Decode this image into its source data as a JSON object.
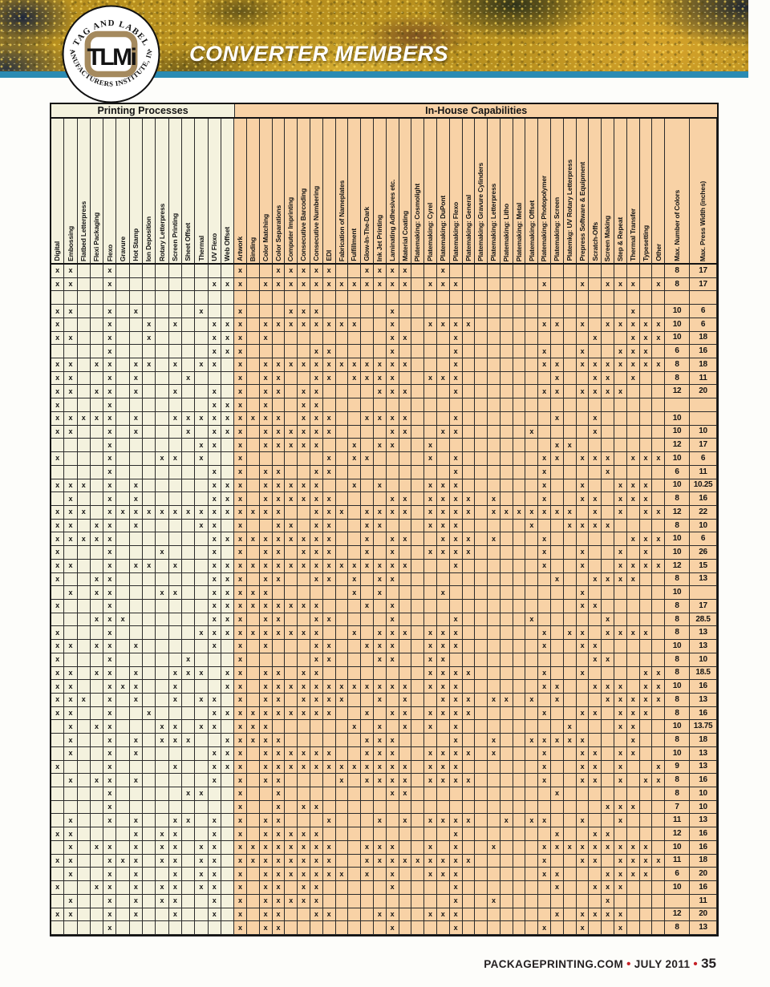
{
  "header": {
    "logo": {
      "top_text": "· TAG AND LABEL ·",
      "bottom_text": "MANUFACTURERS INSTITUTE, INC.",
      "monogram": "TLMi"
    },
    "title": "CONVERTER MEMBERS"
  },
  "table": {
    "section_printing": "Printing Processes",
    "section_capabilities": "In-House Capabilities",
    "printing_columns": [
      "Digital",
      "Embossing",
      "Flatbed Letterpress",
      "Flexi Packaging",
      "Flexo",
      "Gravure",
      "Hot Stamp",
      "Ion Deposition",
      "Rotary Letterpress",
      "Screen Printing",
      "Sheet Offset",
      "Thermal",
      "UV Flexo",
      "Web Offset"
    ],
    "capability_columns": [
      "Artwork",
      "Binding",
      "Color Matching",
      "Color Separations",
      "Computer Imprinting",
      "Consecutive Barcoding",
      "Consecutive Numbering",
      "EDI",
      "Fabrication of Nameplates",
      "Fulfillment",
      "Glow-In-The-Dark",
      "Ink Jet Printing",
      "Laminating Adhesives  etc.",
      "Material Coating",
      "Platemaking: Cosmolight",
      "Platemaking: Cyrel",
      "Platemaking: DuPont",
      "Platemaking: Flexo",
      "Platemaking: General",
      "Platemaking: Gravure Cylinders",
      "Platemaking: Letterpress",
      "Platemaking: Litho",
      "Platemaking: Metal",
      "Platemaking: Offset",
      "Platemaking: Photopolymer",
      "Platemaking: Screen",
      "Platemkg: UV Rotary Letterpress",
      "Prepress Software & Equipment",
      "Scratch-Offs",
      "Screen Making",
      "Step & Repeat",
      "Thermal Transfer",
      "Typesetting",
      "Other"
    ],
    "max_columns": [
      "Max. Number of Colors",
      "Max. Press Width (inches)"
    ],
    "mark": "x",
    "rows": [
      {
        "p": "xx..x.........",
        "c": "x..xxxxx..xxxx..x.................",
        "colors": "8",
        "width": "17"
      },
      {
        "p": "xx..x.......xx",
        "c": "x.xxxxxxxxxxxx.xxx......x..x.xxx.x",
        "colors": "8",
        "width": "17"
      },
      {
        "p": "..............",
        "c": "..................................",
        "colors": "",
        "width": ""
      },
      {
        "p": "xx..x.x....x..",
        "c": "x...xxx.....x..................x..",
        "colors": "10",
        "width": "6"
      },
      {
        "p": "x...x..x.x..xx",
        "c": "x.xxxxxxxx..x..xxxx.....xx.x.xxxxx",
        "colors": "10",
        "width": "6"
      },
      {
        "p": "xx..x..x....xx",
        "c": "x.x.........xx...x..........x..xxx",
        "colors": "10",
        "width": "18"
      },
      {
        "p": "....x.......xx",
        "c": "x.....xx....x....x......x..x..xxx.",
        "colors": "6",
        "width": "16"
      },
      {
        "p": "xx.xx.xx.x.xx.",
        "c": "x.xxxxxxxxxxxx...x......xx.xxxxxxx",
        "colors": "8",
        "width": "18"
      },
      {
        "p": "xx..x.x...x...",
        "c": "x.xx..xx.xxxx..xxx.......x..xx.x..",
        "colors": "8",
        "width": "11"
      },
      {
        "p": "xx.xx.x..x..x.",
        "c": "x.xx.xx....xxx...x......xx.xxxx...",
        "colors": "12",
        "width": "20"
      },
      {
        "p": "x...x.......xx",
        "c": "x.x..xx...........................",
        "colors": "",
        "width": ""
      },
      {
        "p": "xxxxx.x..xxxxx",
        "c": "xxxx.xxx..xxxx...x.......x..x.....",
        "colors": "10",
        "width": ""
      },
      {
        "p": "xx..x.x...x.xx",
        "c": "x.xxxxxx....xx..xx.....x....x.....",
        "colors": "10",
        "width": "10"
      },
      {
        "p": "....x......xx.",
        "c": "x.xxxxx..x.xx..x.........xx.......",
        "colors": "12",
        "width": "17"
      },
      {
        "p": "x...x...xx.x..",
        "c": "x......x.xx....x.x......xx.xxx.xxx",
        "colors": "10",
        "width": "6"
      },
      {
        "p": "....x.......x.",
        "c": "x.xx..xx.........x......x....x....",
        "colors": "6",
        "width": "11"
      },
      {
        "p": "xxx.x.x.....xx",
        "c": "x.xxxxx..x.x...xxx......x..x..xxx.",
        "colors": "10",
        "width": "10.25"
      },
      {
        "p": ".x..x.x.....xx",
        "c": "x.xxxxxx....xx.xxxx.x...x..xx.xxx.",
        "colors": "8",
        "width": "16"
      },
      {
        "p": "xxx.xxxxxxxxxx",
        "c": "xxxx..xxx.xxxx.xxxx.xxxxxxx.x.x.xx",
        "colors": "12",
        "width": "22"
      },
      {
        "p": "xx.xx.x....xx.",
        "c": "x..xx.xx..xx...xxx.....x..xxxx....",
        "colors": "8",
        "width": "10"
      },
      {
        "p": "xxxxx.......xx",
        "c": "xxxxxxxx..x.xx..xxx.x...x......xxx",
        "colors": "10",
        "width": "6"
      },
      {
        "p": "x...x...x...x.",
        "c": "x.xx.xxx..x.x..xxxx.....x..x..x.x.",
        "colors": "10",
        "width": "26"
      },
      {
        "p": "xx..x.xx.x..xx",
        "c": "xxxxxxxxxxxxxx...x......x..x..xxxx",
        "colors": "12",
        "width": "15"
      },
      {
        "p": "x..xx.......xx",
        "c": "x.xx..xx.x.xx............x..xxxx..",
        "colors": "8",
        "width": "13"
      },
      {
        "p": ".x.xx...xx..xx",
        "c": "xxx......x.x....x..........x......",
        "colors": "10",
        "width": ""
      },
      {
        "p": "x...x.......xx",
        "c": "xxxxxxx...x.x..............xx.....",
        "colors": "8",
        "width": "17"
      },
      {
        "p": "...xxx......xx",
        "c": "x.xx..xx....x....x.....x.....x....",
        "colors": "8",
        "width": "28.5"
      },
      {
        "p": "x...x......xxx",
        "c": "xxxxxxx..x.xxx.xxx......x.xx.xxxx.",
        "colors": "8",
        "width": "13"
      },
      {
        "p": "xx.xx.x.....x.",
        "c": "x.x...xx..xxx..xxx......x..xx.....",
        "colors": "10",
        "width": "13"
      },
      {
        "p": "x...x.....x...",
        "c": "x.....xx...xx..xx...........xx....",
        "colors": "8",
        "width": "10"
      },
      {
        "p": "xx.xx.x..xxx.x",
        "c": "x.xx.xx........xxxx.....x..x....xx",
        "colors": "8",
        "width": "18.5"
      },
      {
        "p": "xx..xxx..x...x",
        "c": "x.xxxxxxxxxxxx.xxx......xx..xxx.xx",
        "colors": "10",
        "width": "16"
      },
      {
        "p": "xxx.x.x..x.xx.",
        "c": "x.xx.xxxx..x.x..xxx.xx.x.x...xxxxx",
        "colors": "8",
        "width": "13"
      },
      {
        "p": "xx..x..x....xx",
        "c": "xxxxxxxx..x.xx.xxxx.....x..xx.xxx.",
        "colors": "8",
        "width": "16"
      },
      {
        "p": ".x.xx...xx.xx.",
        "c": "xxx......x.x.x.x.x........x...xx..",
        "colors": "10",
        "width": "13.75"
      },
      {
        "p": ".x..x.x.xxx..x",
        "c": "xxxx......xxx....x..x..xxxxx...x..",
        "colors": "8",
        "width": "18"
      },
      {
        "p": ".x..x.x.....xx",
        "c": "x.xxxxxx..xxx..xxxx.x...x..xx.xx..",
        "colors": "10",
        "width": "13"
      },
      {
        "p": "x...x....x..xx",
        "c": "x.xxxxxxxxxxxx.xxx......x..xx.x..x",
        "colors": "9",
        "width": "13"
      },
      {
        "p": ".x.xx.x.....x.",
        "c": "x.xx....x.xxxx.xxxx.....x..xx.x.xx",
        "colors": "8",
        "width": "16"
      },
      {
        "p": "....x.....xx..",
        "c": "x..x........xx...........x........",
        "colors": "8",
        "width": "10"
      },
      {
        "p": "....x.........",
        "c": "x..x.xx......................xxx..",
        "colors": "7",
        "width": "10"
      },
      {
        "p": ".x..x.x..xx.x.",
        "c": "x.xx...x...x.x.xxxx..x.xx..x..x...",
        "colors": "11",
        "width": "13"
      },
      {
        "p": "xx....x.xx..x.",
        "c": "x.xxxxx..........x.......x..xx....",
        "colors": "12",
        "width": "16"
      },
      {
        "p": ".x.xx.x.xx.xx.",
        "c": "xxxxxxxx..xxx..x.x..x...xxxxxxxxx.",
        "colors": "10",
        "width": "16"
      },
      {
        "p": "xx..xxx.xx.xx.",
        "c": "xxxxxxxx..xxxxxxxxx.....x..xx.xxxx",
        "colors": "11",
        "width": "18"
      },
      {
        "p": ".x..x.x..x.xx.",
        "c": "x.xxxxxxx.x.x..xxx......xx...xxxx.",
        "colors": "6",
        "width": "20"
      },
      {
        "p": "x..xx.x.xx.xx.",
        "c": "x.xx.xx.....x....x.......x..xxx...",
        "colors": "10",
        "width": "16"
      },
      {
        "p": ".x..x.x.xx..x.",
        "c": "x.xxxxx..........x..x........x....",
        "colors": "",
        "width": "11"
      },
      {
        "p": "xx..x.x..x..x.",
        "c": "x.xx..xx...xx..xxx.......x.xxxx...",
        "colors": "12",
        "width": "20"
      },
      {
        "p": "....x.........",
        "c": "x.xx........x....x......x..x..x...",
        "colors": "8",
        "width": "13"
      }
    ]
  },
  "footer": {
    "site": "PACKAGEPRINTING.COM",
    "issue": "JULY 2011",
    "page": "35",
    "separator": "•"
  },
  "colors": {
    "banner_navy": "#15213c",
    "banner_teal": "#2a8bb3",
    "cream": "#f4f2de",
    "peach": "#f8d2a6",
    "grid_line": "#2b2b2b",
    "accent_red": "#c52127",
    "logo_tan": "#a58a5e"
  }
}
